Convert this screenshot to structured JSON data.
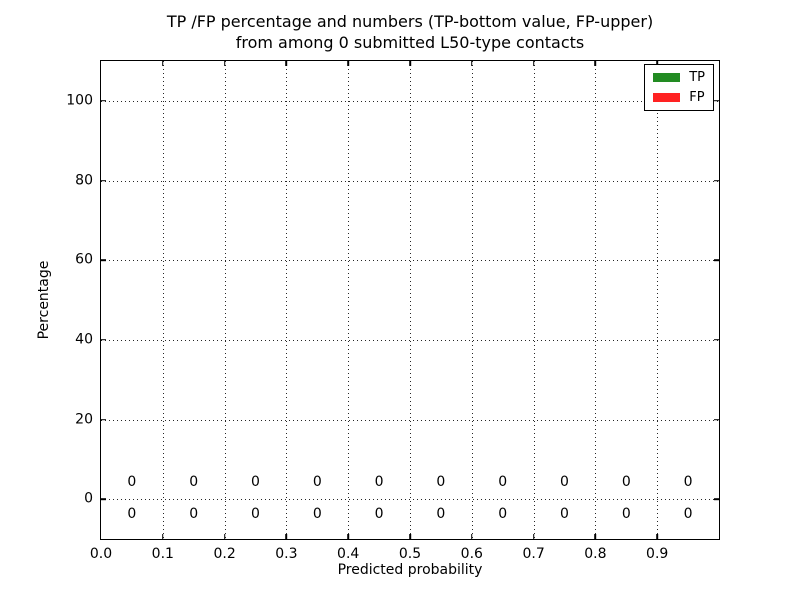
{
  "chart_data": {
    "type": "bar",
    "title_line1": "TP /FP percentage and numbers (TP-bottom value, FP-upper)",
    "title_line2": "from among 0 submitted L50-type contacts",
    "xlabel": "Predicted probability",
    "ylabel": "Percentage",
    "xlim": [
      0.0,
      1.0
    ],
    "ylim": [
      -10,
      110
    ],
    "grid": true,
    "grid_style": "dotted",
    "legend_position": "upper right",
    "x_ticks": [
      {
        "value": 0.0,
        "label": "0.0"
      },
      {
        "value": 0.1,
        "label": "0.1"
      },
      {
        "value": 0.2,
        "label": "0.2"
      },
      {
        "value": 0.3,
        "label": "0.3"
      },
      {
        "value": 0.4,
        "label": "0.4"
      },
      {
        "value": 0.5,
        "label": "0.5"
      },
      {
        "value": 0.6,
        "label": "0.6"
      },
      {
        "value": 0.7,
        "label": "0.7"
      },
      {
        "value": 0.8,
        "label": "0.8"
      },
      {
        "value": 0.9,
        "label": "0.9"
      }
    ],
    "y_ticks": [
      {
        "value": 0,
        "label": "0"
      },
      {
        "value": 20,
        "label": "20"
      },
      {
        "value": 40,
        "label": "40"
      },
      {
        "value": 60,
        "label": "60"
      },
      {
        "value": 80,
        "label": "80"
      },
      {
        "value": 100,
        "label": "100"
      }
    ],
    "bin_centers": [
      0.05,
      0.15,
      0.25,
      0.35,
      0.45,
      0.55,
      0.65,
      0.75,
      0.85,
      0.95
    ],
    "series": [
      {
        "name": "TP",
        "color": "#228b22",
        "percent_values": [
          0,
          0,
          0,
          0,
          0,
          0,
          0,
          0,
          0,
          0
        ],
        "count_labels": [
          "0",
          "0",
          "0",
          "0",
          "0",
          "0",
          "0",
          "0",
          "0",
          "0"
        ],
        "label_row": "bottom",
        "annotation_y": -3.75
      },
      {
        "name": "FP",
        "color": "#ff2222",
        "percent_values": [
          0,
          0,
          0,
          0,
          0,
          0,
          0,
          0,
          0,
          0
        ],
        "count_labels": [
          "0",
          "0",
          "0",
          "0",
          "0",
          "0",
          "0",
          "0",
          "0",
          "0"
        ],
        "label_row": "top",
        "annotation_y": 4.25
      }
    ]
  }
}
